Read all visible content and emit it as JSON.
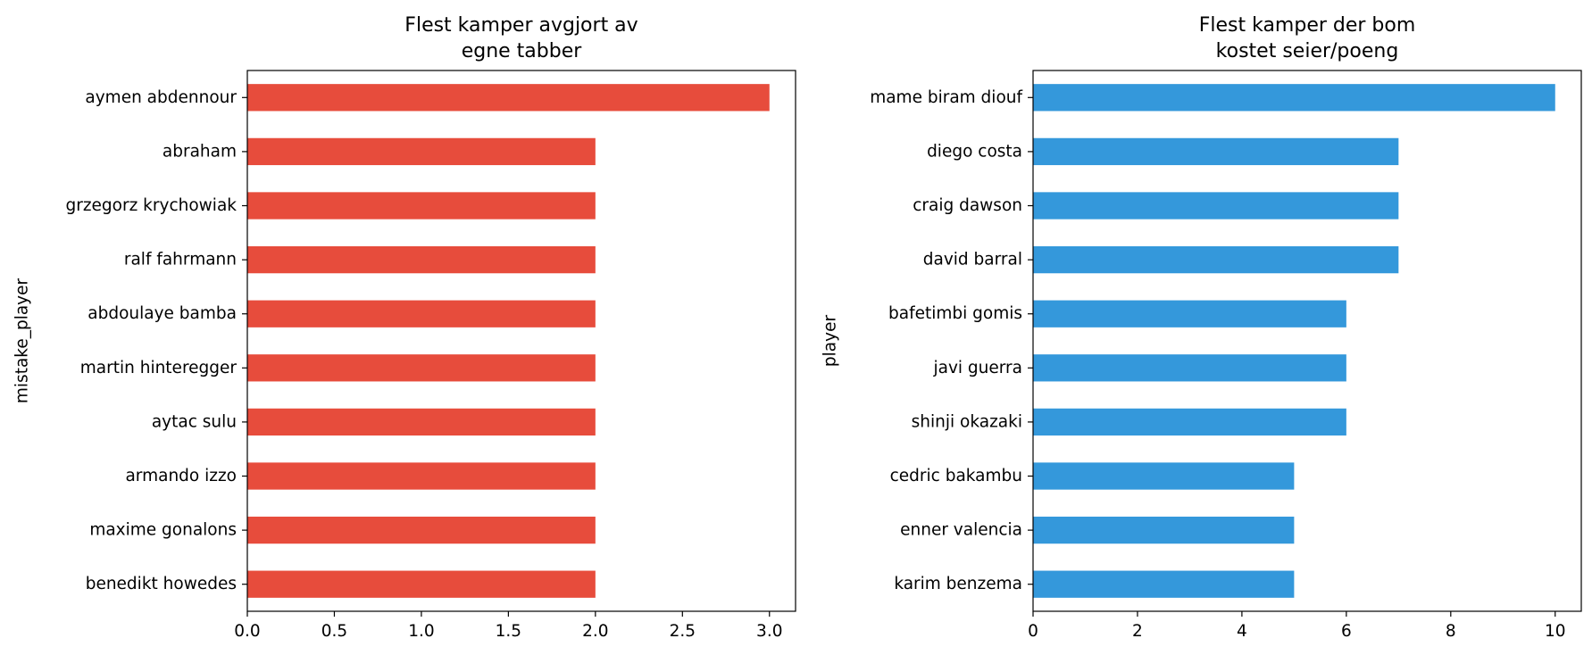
{
  "chart_data": [
    {
      "type": "bar",
      "orientation": "horizontal",
      "title": "Flest kamper avgjort av\negne tabber",
      "xlabel": "",
      "ylabel": "mistake_player",
      "categories": [
        "aymen abdennour",
        "abraham",
        "grzegorz krychowiak",
        "ralf fahrmann",
        "abdoulaye bamba",
        "martin hinteregger",
        "aytac sulu",
        "armando izzo",
        "maxime gonalons",
        "benedikt howedes"
      ],
      "values": [
        3,
        2,
        2,
        2,
        2,
        2,
        2,
        2,
        2,
        2
      ],
      "xlim": [
        0,
        3.15
      ],
      "xticks": [
        0.0,
        0.5,
        1.0,
        1.5,
        2.0,
        2.5,
        3.0
      ],
      "xtick_labels": [
        "0.0",
        "0.5",
        "1.0",
        "1.5",
        "2.0",
        "2.5",
        "3.0"
      ],
      "color": "#e74c3c",
      "grid": false,
      "legend": "none"
    },
    {
      "type": "bar",
      "orientation": "horizontal",
      "title": "Flest kamper der bom\nkostet seier/poeng",
      "xlabel": "",
      "ylabel": "player",
      "categories": [
        "mame biram diouf",
        "diego costa",
        "craig dawson",
        "david barral",
        "bafetimbi gomis",
        "javi guerra",
        "shinji okazaki",
        "cedric bakambu",
        "enner valencia",
        "karim benzema"
      ],
      "values": [
        10,
        7,
        7,
        7,
        6,
        6,
        6,
        5,
        5,
        5
      ],
      "xlim": [
        0,
        10.5
      ],
      "xticks": [
        0,
        2,
        4,
        6,
        8,
        10
      ],
      "xtick_labels": [
        "0",
        "2",
        "4",
        "6",
        "8",
        "10"
      ],
      "color": "#3498db",
      "grid": false,
      "legend": "none"
    }
  ]
}
